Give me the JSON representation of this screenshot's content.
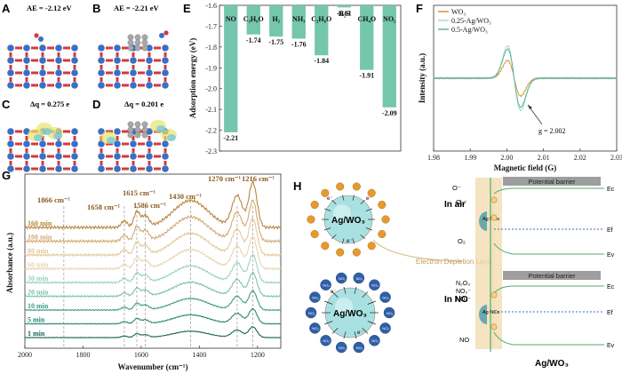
{
  "panels": {
    "A": "A",
    "B": "B",
    "C": "C",
    "D": "D",
    "E": "E",
    "F": "F",
    "G": "G",
    "H": "H"
  },
  "structures": {
    "A_label": "AE = -2.12 eV",
    "B_label": "AE = -2.21 eV",
    "C_label": "Δq = 0.275 e",
    "D_label": "Δq = 0.201 e"
  },
  "colors": {
    "bar": "#74c6ad",
    "wo3": "#e0922b",
    "ag025": "#a6ddd3",
    "ag05": "#5fb4a2"
  },
  "chart_data": [
    {
      "type": "bar",
      "panel": "E",
      "categories": [
        "NO",
        "C₃H₆O",
        "H₂",
        "NH₃",
        "C₂H₆O",
        "H₂S",
        "CH₄O",
        "NO₂"
      ],
      "values": [
        -2.21,
        -1.74,
        -1.75,
        -1.76,
        -1.84,
        -1.61,
        -1.91,
        -2.09
      ],
      "value_labels": [
        "-2.21",
        "-1.74",
        "-1.75",
        "-1.76",
        "-1.84",
        "-1.61",
        "-1.91",
        "-2.09"
      ],
      "ylabel": "Adsorption energy (eV)",
      "ylim": [
        -2.3,
        -1.6
      ],
      "yticks": [
        "-1.6",
        "-1.7",
        "-1.8",
        "-1.9",
        "-2.0",
        "-2.1",
        "-2.2",
        "-2.3"
      ]
    },
    {
      "type": "line",
      "panel": "F",
      "xlabel": "Magnetic field (G)",
      "ylabel": "Intensity (a.u.)",
      "xlim": [
        1.98,
        2.03
      ],
      "xticks": [
        "1.98",
        "1.99",
        "2.00",
        "2.01",
        "2.02",
        "2.03"
      ],
      "series": [
        {
          "name": "WO₃",
          "amplitude": 0.55
        },
        {
          "name": "0.25-Ag/WO₃",
          "amplitude": 1.0
        },
        {
          "name": "0.5-Ag/WO₃",
          "amplitude": 0.9
        }
      ],
      "annotation": "g = 2.002",
      "center": 2.002
    },
    {
      "type": "line",
      "panel": "G",
      "xlabel": "Wavenumber (cm⁻¹)",
      "ylabel": "Absorbance (a.u.)",
      "xlim": [
        2000,
        1120
      ],
      "xticks": [
        "2000",
        "1800",
        "1600",
        "1400",
        "1200"
      ],
      "series_names": [
        "160 min",
        "100 min",
        "80 min",
        "60 min",
        "30 min",
        "20 min",
        "10 min",
        "5 min",
        "1 min"
      ],
      "peaks": [
        {
          "x": 1866,
          "label": "1866 cm⁻¹"
        },
        {
          "x": 1658,
          "label": "1658 cm⁻¹"
        },
        {
          "x": 1615,
          "label": "1615 cm⁻¹"
        },
        {
          "x": 1586,
          "label": "1586 cm⁻¹"
        },
        {
          "x": 1430,
          "label": "1430 cm⁻¹"
        },
        {
          "x": 1270,
          "label": "1270 cm⁻¹"
        },
        {
          "x": 1216,
          "label": "1216 cm⁻¹"
        }
      ]
    }
  ],
  "schematic": {
    "sphere_label": "Ag/WO₃",
    "electron": "e⁻",
    "o2_minus": "O₂⁻",
    "o_minus": "O⁻",
    "o2": "O₂",
    "no": "NO",
    "no2_molecule": "NO₂",
    "n2o3": "N₂O₃",
    "no2_minus": "NO₂⁻",
    "no3_minus": "NO₃⁻",
    "ag_ncs": "Ag NCs",
    "in_air": "In air",
    "in_no": "In NO",
    "potential_barrier": "Potential barrier",
    "depletion": "Electron Depletion Layer",
    "ec": "Ec",
    "ef": "Ef",
    "ev": "Ev",
    "bottom_label": "Ag/WO₃"
  }
}
